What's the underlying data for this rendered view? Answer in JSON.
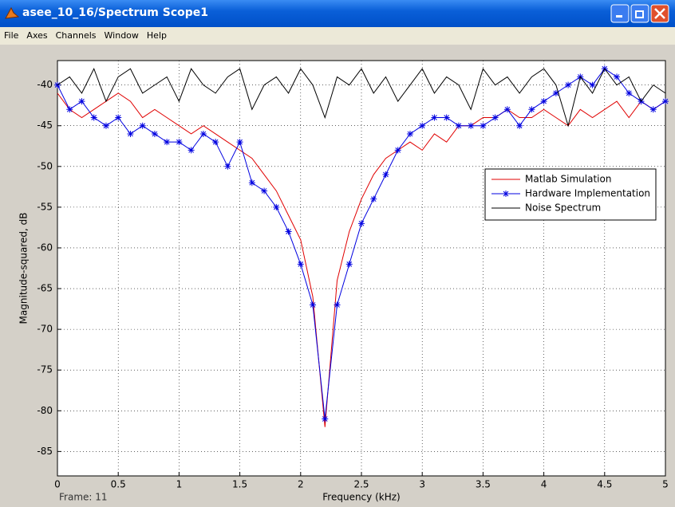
{
  "window": {
    "title": "asee_10_16/Spectrum Scope1",
    "menu": [
      "File",
      "Axes",
      "Channels",
      "Window",
      "Help"
    ],
    "frame_label": "Frame: 11"
  },
  "chart_data": {
    "type": "line",
    "xlabel": "Frequency (kHz)",
    "ylabel": "Magnitude-squared, dB",
    "x": [
      0,
      0.1,
      0.2,
      0.3,
      0.4,
      0.5,
      0.6,
      0.7,
      0.8,
      0.9,
      1,
      1.1,
      1.2,
      1.3,
      1.4,
      1.5,
      1.6,
      1.7,
      1.8,
      1.9,
      2,
      2.1,
      2.2,
      2.3,
      2.4,
      2.5,
      2.6,
      2.7,
      2.8,
      2.9,
      3,
      3.1,
      3.2,
      3.3,
      3.4,
      3.5,
      3.6,
      3.7,
      3.8,
      3.9,
      4,
      4.1,
      4.2,
      4.3,
      4.4,
      4.5,
      4.6,
      4.7,
      4.8,
      4.9,
      5
    ],
    "series": [
      {
        "name": "Matlab Simulation",
        "color": "#e00000",
        "marker": null,
        "values": [
          -41,
          -43,
          -44,
          -43,
          -42,
          -41,
          -42,
          -44,
          -43,
          -44,
          -45,
          -46,
          -45,
          -46,
          -47,
          -48,
          -49,
          -51,
          -53,
          -56,
          -59,
          -66,
          -82,
          -64,
          -58,
          -54,
          -51,
          -49,
          -48,
          -47,
          -48,
          -46,
          -47,
          -45,
          -45,
          -44,
          -44,
          -43,
          -44,
          -44,
          -43,
          -44,
          -45,
          -43,
          -44,
          -43,
          -42,
          -44,
          -42,
          -43,
          -42
        ]
      },
      {
        "name": "Hardware Implementation",
        "color": "#0000e0",
        "marker": "star",
        "values": [
          -40,
          -43,
          -42,
          -44,
          -45,
          -44,
          -46,
          -45,
          -46,
          -47,
          -47,
          -48,
          -46,
          -47,
          -50,
          -47,
          -52,
          -53,
          -55,
          -58,
          -62,
          -67,
          -81,
          -67,
          -62,
          -57,
          -54,
          -51,
          -48,
          -46,
          -45,
          -44,
          -44,
          -45,
          -45,
          -45,
          -44,
          -43,
          -45,
          -43,
          -42,
          -41,
          -40,
          -39,
          -40,
          -38,
          -39,
          -41,
          -42,
          -43,
          -42
        ]
      },
      {
        "name": "Noise Spectrum",
        "color": "#000000",
        "marker": null,
        "values": [
          -40,
          -39,
          -41,
          -38,
          -42,
          -39,
          -38,
          -41,
          -40,
          -39,
          -42,
          -38,
          -40,
          -41,
          -39,
          -38,
          -43,
          -40,
          -39,
          -41,
          -38,
          -40,
          -44,
          -39,
          -40,
          -38,
          -41,
          -39,
          -42,
          -40,
          -38,
          -41,
          -39,
          -40,
          -43,
          -38,
          -40,
          -39,
          -41,
          -39,
          -38,
          -40,
          -45,
          -39,
          -41,
          -38,
          -40,
          -39,
          -42,
          -40,
          -41
        ]
      }
    ],
    "xlim": [
      0,
      5
    ],
    "xticks": [
      0,
      0.5,
      1,
      1.5,
      2,
      2.5,
      3,
      3.5,
      4,
      4.5,
      5
    ],
    "ylim": [
      -88,
      -37
    ],
    "yticks": [
      -40,
      -45,
      -50,
      -55,
      -60,
      -65,
      -70,
      -75,
      -80,
      -85
    ],
    "grid": true,
    "legend": "right"
  }
}
